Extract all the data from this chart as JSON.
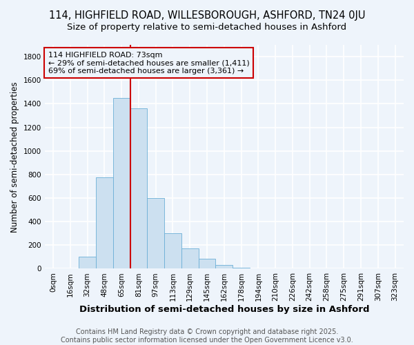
{
  "title_line1": "114, HIGHFIELD ROAD, WILLESBOROUGH, ASHFORD, TN24 0JU",
  "title_line2": "Size of property relative to semi-detached houses in Ashford",
  "xlabel": "Distribution of semi-detached houses by size in Ashford",
  "ylabel": "Number of semi-detached properties",
  "bin_labels": [
    "0sqm",
    "16sqm",
    "32sqm",
    "48sqm",
    "65sqm",
    "81sqm",
    "97sqm",
    "113sqm",
    "129sqm",
    "145sqm",
    "162sqm",
    "178sqm",
    "194sqm",
    "210sqm",
    "226sqm",
    "242sqm",
    "258sqm",
    "275sqm",
    "291sqm",
    "307sqm",
    "323sqm"
  ],
  "bar_heights": [
    0,
    3,
    100,
    775,
    1450,
    1360,
    600,
    300,
    175,
    85,
    30,
    10,
    5,
    2,
    1,
    1,
    5,
    1,
    1,
    1,
    0
  ],
  "bar_color": "#cce0f0",
  "bar_edge_color": "#6bafd6",
  "vline_x_idx": 4,
  "vline_color": "#cc0000",
  "annotation_text": "114 HIGHFIELD ROAD: 73sqm\n← 29% of semi-detached houses are smaller (1,411)\n69% of semi-detached houses are larger (3,361) →",
  "annotation_box_color": "#cc0000",
  "ylim": [
    0,
    1900
  ],
  "yticks": [
    0,
    200,
    400,
    600,
    800,
    1000,
    1200,
    1400,
    1600,
    1800
  ],
  "footer_text": "Contains HM Land Registry data © Crown copyright and database right 2025.\nContains public sector information licensed under the Open Government Licence v3.0.",
  "bg_color": "#eef4fb",
  "grid_color": "#ffffff",
  "title_fontsize": 10.5,
  "subtitle_fontsize": 9.5,
  "axis_label_fontsize": 8.5,
  "tick_fontsize": 7.5,
  "annotation_fontsize": 8,
  "footer_fontsize": 7
}
